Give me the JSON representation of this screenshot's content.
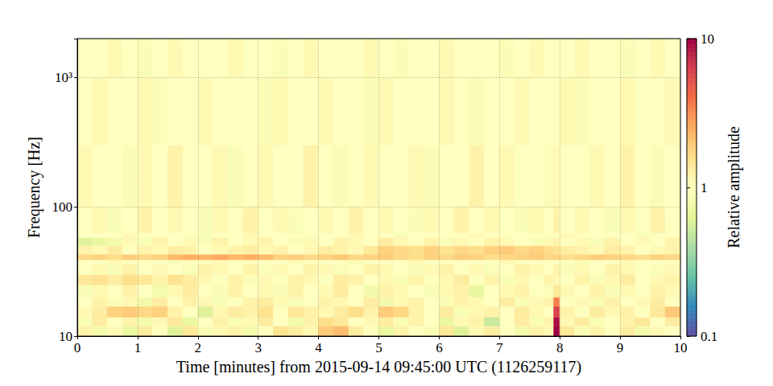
{
  "chart_data": {
    "type": "heatmap",
    "xlabel": "Time [minutes] from 2015-09-14 09:45:00 UTC (1126259117)",
    "ylabel": "Frequency [Hz]",
    "xlim": [
      0,
      10
    ],
    "xticks": [
      0,
      1,
      2,
      3,
      4,
      5,
      6,
      7,
      8,
      9,
      10
    ],
    "ylim": [
      10,
      2000
    ],
    "yticks": [
      10,
      100,
      {
        "value": 1000,
        "label": "10³"
      }
    ],
    "log": "y",
    "grid": true,
    "x_edges": [
      0,
      0.25,
      0.5,
      0.75,
      1,
      1.25,
      1.5,
      1.75,
      2,
      2.25,
      2.5,
      2.75,
      3,
      3.25,
      3.5,
      3.75,
      4,
      4.25,
      4.5,
      4.75,
      5,
      5.25,
      5.5,
      5.75,
      6,
      6.25,
      6.5,
      6.75,
      7,
      7.25,
      7.5,
      7.75,
      7.9,
      8,
      8.25,
      8.5,
      8.75,
      9,
      9.25,
      9.5,
      9.75,
      10
    ],
    "y_edges": [
      10,
      12,
      14,
      17,
      20,
      25,
      30,
      36,
      39,
      43,
      50,
      58,
      63,
      100,
      300,
      1000,
      2000
    ],
    "cells": [
      [
        1.2,
        0.8,
        1.1,
        0.7,
        1.3,
        1.0,
        0.6,
        1.4,
        0.9,
        1.1,
        1.2,
        0.8,
        1.0,
        1.5,
        1.3,
        1.1,
        1.9,
        2.2,
        1.3,
        1.0,
        0.7,
        1.2,
        1.0,
        0.9,
        1.4,
        0.6,
        1.1,
        1.3,
        1.0,
        0.8,
        1.2,
        1.1,
        10,
        1.4,
        0.9,
        1.2,
        1.0,
        1.3,
        0.8,
        1.1,
        1.0
      ],
      [
        0.9,
        1.3,
        1.0,
        1.2,
        0.8,
        1.1,
        1.4,
        0.7,
        1.0,
        1.2,
        0.9,
        1.1,
        1.3,
        1.0,
        0.8,
        1.2,
        1.6,
        1.4,
        1.0,
        1.1,
        1.3,
        0.9,
        1.2,
        1.0,
        0.7,
        1.1,
        1.2,
        0.5,
        1.0,
        1.3,
        0.9,
        1.2,
        9,
        1.1,
        1.3,
        0.9,
        1.0,
        1.2,
        1.4,
        1.0,
        1.3
      ],
      [
        1.1,
        1.3,
        1.8,
        1.9,
        1.7,
        1.8,
        1.2,
        1.0,
        0.6,
        1.1,
        1.3,
        1.2,
        1.5,
        1.0,
        1.4,
        1.2,
        1.1,
        1.3,
        1.6,
        1.2,
        1.9,
        1.7,
        1.2,
        1.0,
        1.3,
        0.9,
        1.1,
        1.2,
        1.0,
        1.3,
        1.1,
        1.0,
        6,
        1.2,
        1.0,
        1.3,
        1.1,
        1.2,
        1.0,
        1.4,
        2.0
      ],
      [
        1.0,
        1.2,
        0.9,
        1.1,
        0.8,
        1.3,
        1.0,
        1.2,
        1.1,
        0.9,
        1.0,
        1.2,
        1.3,
        1.1,
        0.9,
        1.0,
        1.2,
        1.1,
        1.0,
        1.3,
        0.8,
        1.1,
        1.2,
        1.0,
        0.9,
        1.2,
        1.1,
        1.0,
        1.3,
        0.9,
        1.1,
        1.2,
        3.5,
        1.0,
        1.1,
        0.9,
        1.2,
        1.0,
        1.1,
        1.3,
        1.0
      ],
      [
        0.9,
        1.1,
        1.0,
        1.2,
        1.0,
        0.8,
        1.1,
        1.3,
        1.0,
        0.9,
        1.2,
        1.0,
        1.1,
        0.9,
        1.2,
        1.0,
        1.1,
        1.3,
        1.0,
        0.8,
        1.2,
        1.1,
        1.0,
        0.9,
        1.1,
        1.2,
        0.7,
        1.0,
        1.1,
        1.2,
        1.0,
        0.9,
        1.4,
        1.1,
        1.0,
        1.2,
        0.9,
        1.1,
        1.0,
        1.2,
        1.1
      ],
      [
        1.4,
        1.5,
        1.3,
        1.6,
        1.4,
        1.2,
        1.5,
        1.3,
        1.1,
        1.0,
        1.2,
        0.9,
        1.1,
        1.0,
        1.2,
        1.1,
        1.0,
        1.3,
        1.2,
        1.0,
        1.1,
        0.9,
        1.2,
        1.0,
        1.1,
        1.3,
        1.0,
        1.2,
        0.9,
        1.1,
        1.0,
        1.2,
        1.1,
        1.0,
        1.2,
        0.9,
        1.1,
        1.3,
        1.0,
        1.1,
        1.2
      ],
      [
        1.0,
        1.1,
        0.9,
        1.2,
        1.0,
        1.1,
        1.0,
        0.9,
        1.2,
        1.1,
        1.0,
        1.2,
        0.9,
        1.1,
        1.0,
        1.2,
        1.1,
        0.9,
        1.0,
        1.2,
        1.1,
        1.0,
        0.9,
        1.1,
        1.2,
        1.0,
        1.1,
        0.9,
        1.0,
        1.2,
        1.1,
        1.0,
        1.2,
        0.9,
        1.1,
        1.0,
        1.2,
        1.1,
        1.0,
        0.9,
        1.1
      ],
      [
        1.0,
        1.0,
        1.1,
        1.0,
        1.0,
        1.0,
        0.9,
        1.0,
        1.0,
        1.1,
        1.0,
        1.0,
        1.0,
        1.0,
        1.1,
        1.0,
        1.0,
        1.0,
        0.9,
        1.0,
        1.0,
        1.0,
        1.1,
        1.0,
        1.0,
        1.0,
        1.0,
        1.0,
        1.1,
        1.0,
        1.0,
        1.0,
        1.0,
        1.0,
        0.9,
        1.0,
        1.0,
        1.1,
        1.0,
        1.0,
        1.0
      ],
      [
        1.7,
        1.8,
        1.6,
        1.9,
        1.7,
        1.8,
        2.3,
        2.5,
        2.4,
        2.6,
        2.3,
        2.5,
        2.2,
        1.8,
        1.9,
        1.7,
        1.8,
        2.0,
        1.7,
        1.8,
        1.9,
        1.7,
        1.6,
        1.8,
        1.7,
        1.9,
        1.8,
        1.6,
        1.7,
        1.8,
        1.9,
        1.7,
        1.8,
        1.6,
        1.7,
        1.9,
        1.8,
        1.7,
        1.6,
        1.8,
        1.7
      ],
      [
        1.2,
        1.1,
        1.3,
        1.0,
        1.2,
        1.1,
        1.3,
        1.2,
        1.0,
        1.1,
        1.2,
        1.3,
        1.1,
        1.2,
        1.0,
        1.1,
        1.3,
        1.2,
        1.1,
        1.4,
        1.8,
        1.7,
        1.6,
        1.8,
        1.5,
        1.7,
        1.6,
        1.8,
        1.9,
        1.7,
        1.8,
        1.6,
        1.5,
        1.3,
        1.2,
        1.1,
        1.3,
        1.2,
        1.0,
        1.1,
        1.2
      ],
      [
        0.6,
        0.7,
        0.8,
        1.1,
        0.9,
        1.2,
        1.0,
        1.1,
        0.9,
        1.2,
        1.0,
        1.1,
        1.2,
        1.0,
        0.9,
        1.1,
        1.0,
        1.2,
        1.1,
        1.0,
        1.3,
        1.1,
        1.0,
        1.2,
        0.9,
        1.1,
        1.0,
        1.2,
        1.1,
        1.0,
        0.9,
        1.1,
        1.2,
        1.0,
        1.1,
        0.9,
        1.2,
        1.0,
        1.1,
        1.0,
        1.2
      ],
      [
        1.0,
        1.0,
        1.0,
        1.1,
        1.0,
        1.0,
        1.0,
        1.0,
        0.9,
        1.0,
        1.0,
        1.1,
        1.0,
        1.0,
        1.0,
        1.0,
        1.0,
        1.0,
        1.1,
        1.0,
        1.0,
        0.9,
        1.0,
        1.0,
        1.0,
        1.0,
        1.1,
        1.0,
        1.0,
        1.0,
        1.0,
        1.0,
        1.0,
        1.1,
        1.0,
        1.0,
        1.0,
        1.0,
        0.9,
        1.0,
        1.0
      ],
      [
        1.0,
        1.1,
        0.9,
        1.0,
        1.2,
        1.0,
        1.1,
        1.0,
        0.9,
        1.1,
        1.0,
        1.2,
        1.0,
        1.1,
        0.9,
        1.0,
        1.1,
        1.0,
        1.2,
        1.0,
        1.1,
        1.0,
        0.9,
        1.1,
        1.0,
        1.2,
        1.0,
        1.1,
        1.0,
        0.9,
        1.1,
        1.0,
        1.2,
        1.0,
        1.1,
        1.0,
        0.9,
        1.1,
        1.0,
        1.2,
        1.0
      ],
      [
        1.1,
        1.0,
        1.0,
        0.9,
        1.1,
        1.0,
        1.2,
        1.0,
        1.0,
        1.1,
        0.9,
        1.0,
        1.1,
        1.0,
        1.0,
        1.2,
        1.0,
        0.9,
        1.0,
        1.1,
        1.0,
        1.0,
        1.1,
        0.9,
        1.0,
        1.0,
        1.2,
        1.0,
        1.1,
        1.0,
        1.0,
        0.9,
        1.1,
        1.0,
        1.0,
        1.1,
        1.0,
        1.2,
        1.0,
        0.9,
        1.0
      ],
      [
        1.0,
        1.1,
        1.0,
        1.0,
        1.1,
        0.9,
        1.0,
        1.0,
        1.1,
        1.0,
        1.0,
        1.0,
        0.9,
        1.1,
        1.0,
        1.0,
        1.1,
        1.0,
        1.0,
        0.9,
        1.1,
        1.0,
        1.0,
        1.0,
        1.1,
        1.0,
        0.9,
        1.0,
        1.0,
        1.1,
        1.0,
        1.0,
        1.0,
        1.1,
        0.9,
        1.0,
        1.0,
        1.1,
        1.0,
        1.0,
        1.1
      ],
      [
        1.0,
        1.0,
        1.1,
        1.0,
        0.9,
        1.0,
        1.1,
        1.0,
        1.0,
        1.0,
        1.1,
        1.0,
        1.0,
        0.9,
        1.0,
        1.1,
        1.0,
        1.0,
        1.0,
        1.1,
        1.0,
        0.9,
        1.0,
        1.0,
        1.1,
        1.0,
        1.0,
        1.0,
        0.9,
        1.0,
        1.1,
        1.0,
        1.0,
        1.0,
        1.1,
        1.0,
        1.0,
        0.9,
        1.0,
        1.1,
        1.0
      ]
    ],
    "colorbar_label": "Relative amplitude",
    "colorbar_range": [
      0.1,
      10
    ],
    "colorbar_ticks": [
      0.1,
      1,
      10
    ]
  }
}
